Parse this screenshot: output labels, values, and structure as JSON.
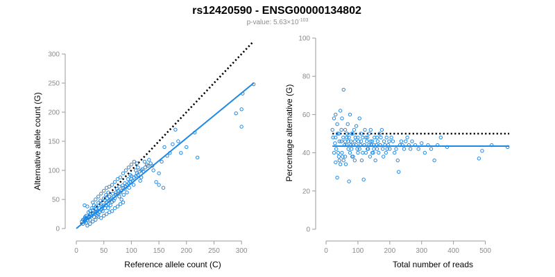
{
  "title": "rs12420590 - ENSG00000134802",
  "subtitle": {
    "prefix": "p-value: 5.63",
    "times": "×",
    "base": "10",
    "exponent": "-103"
  },
  "colors": {
    "points": "#1e88e5",
    "fit": "#1e88e5",
    "reference": "#000000",
    "axis": "#9a9a9a"
  },
  "chart_data": [
    {
      "type": "scatter",
      "xlabel": "Reference allele count (C)",
      "ylabel": "Alternative allele count (G)",
      "xlim": [
        0,
        325
      ],
      "ylim": [
        0,
        300
      ],
      "xticks": [
        0,
        50,
        100,
        150,
        200,
        250,
        300
      ],
      "yticks": [
        0,
        50,
        100,
        150,
        200,
        250,
        300
      ],
      "grid": false,
      "reference_line": {
        "style": "dotted",
        "from": [
          8,
          8
        ],
        "to": [
          322,
          322
        ]
      },
      "fit_line": {
        "style": "solid",
        "from": [
          0,
          0
        ],
        "to": [
          322,
          250
        ]
      },
      "points": [
        [
          12,
          8
        ],
        [
          15,
          12
        ],
        [
          18,
          10
        ],
        [
          20,
          14
        ],
        [
          22,
          18
        ],
        [
          25,
          15
        ],
        [
          14,
          16
        ],
        [
          16,
          20
        ],
        [
          10,
          12
        ],
        [
          28,
          22
        ],
        [
          30,
          25
        ],
        [
          32,
          20
        ],
        [
          35,
          28
        ],
        [
          38,
          30
        ],
        [
          40,
          25
        ],
        [
          42,
          35
        ],
        [
          45,
          32
        ],
        [
          48,
          38
        ],
        [
          50,
          40
        ],
        [
          52,
          35
        ],
        [
          55,
          45
        ],
        [
          58,
          42
        ],
        [
          60,
          48
        ],
        [
          62,
          50
        ],
        [
          65,
          46
        ],
        [
          68,
          55
        ],
        [
          70,
          52
        ],
        [
          72,
          58
        ],
        [
          75,
          60
        ],
        [
          78,
          55
        ],
        [
          80,
          62
        ],
        [
          82,
          65
        ],
        [
          85,
          70
        ],
        [
          88,
          68
        ],
        [
          90,
          72
        ],
        [
          92,
          75
        ],
        [
          95,
          78
        ],
        [
          98,
          80
        ],
        [
          100,
          85
        ],
        [
          102,
          82
        ],
        [
          105,
          88
        ],
        [
          108,
          90
        ],
        [
          110,
          95
        ],
        [
          112,
          92
        ],
        [
          115,
          98
        ],
        [
          118,
          100
        ],
        [
          120,
          102
        ],
        [
          122,
          98
        ],
        [
          125,
          105
        ],
        [
          128,
          110
        ],
        [
          15,
          40
        ],
        [
          20,
          38
        ],
        [
          25,
          30
        ],
        [
          30,
          45
        ],
        [
          35,
          50
        ],
        [
          40,
          55
        ],
        [
          45,
          60
        ],
        [
          50,
          65
        ],
        [
          55,
          70
        ],
        [
          60,
          72
        ],
        [
          65,
          75
        ],
        [
          70,
          80
        ],
        [
          75,
          85
        ],
        [
          80,
          88
        ],
        [
          85,
          95
        ],
        [
          90,
          100
        ],
        [
          95,
          105
        ],
        [
          100,
          110
        ],
        [
          105,
          115
        ],
        [
          110,
          112
        ],
        [
          40,
          20
        ],
        [
          45,
          18
        ],
        [
          50,
          22
        ],
        [
          55,
          25
        ],
        [
          60,
          28
        ],
        [
          65,
          30
        ],
        [
          70,
          35
        ],
        [
          75,
          38
        ],
        [
          80,
          42
        ],
        [
          85,
          45
        ],
        [
          30,
          12
        ],
        [
          35,
          15
        ],
        [
          20,
          5
        ],
        [
          25,
          8
        ],
        [
          18,
          22
        ],
        [
          22,
          28
        ],
        [
          28,
          35
        ],
        [
          32,
          40
        ],
        [
          36,
          38
        ],
        [
          44,
          42
        ],
        [
          48,
          30
        ],
        [
          52,
          48
        ],
        [
          56,
          52
        ],
        [
          58,
          35
        ],
        [
          62,
          40
        ],
        [
          66,
          60
        ],
        [
          74,
          68
        ],
        [
          78,
          72
        ],
        [
          82,
          50
        ],
        [
          86,
          58
        ],
        [
          88,
          78
        ],
        [
          92,
          62
        ],
        [
          96,
          70
        ],
        [
          100,
          90
        ],
        [
          104,
          75
        ],
        [
          108,
          100
        ],
        [
          112,
          105
        ],
        [
          116,
          82
        ],
        [
          118,
          88
        ],
        [
          124,
          115
        ],
        [
          130,
          108
        ],
        [
          135,
          112
        ],
        [
          140,
          100
        ],
        [
          145,
          80
        ],
        [
          150,
          95
        ],
        [
          155,
          115
        ],
        [
          160,
          140
        ],
        [
          165,
          125
        ],
        [
          170,
          130
        ],
        [
          175,
          145
        ],
        [
          180,
          170
        ],
        [
          185,
          150
        ],
        [
          190,
          130
        ],
        [
          200,
          140
        ],
        [
          215,
          165
        ],
        [
          220,
          122
        ],
        [
          150,
          75
        ],
        [
          158,
          70
        ],
        [
          138,
          108
        ],
        [
          132,
          118
        ],
        [
          290,
          198
        ],
        [
          300,
          175
        ],
        [
          302,
          232
        ],
        [
          322,
          248
        ],
        [
          300,
          205
        ],
        [
          16,
          18
        ],
        [
          24,
          20
        ],
        [
          34,
          26
        ],
        [
          38,
          22
        ],
        [
          42,
          28
        ],
        [
          46,
          34
        ],
        [
          54,
          40
        ],
        [
          60,
          55
        ],
        [
          64,
          52
        ],
        [
          68,
          48
        ],
        [
          72,
          62
        ],
        [
          76,
          65
        ],
        [
          84,
          74
        ],
        [
          94,
          85
        ],
        [
          98,
          92
        ],
        [
          12,
          15
        ],
        [
          18,
          18
        ],
        [
          26,
          24
        ],
        [
          30,
          32
        ],
        [
          36,
          34
        ],
        [
          40,
          44
        ],
        [
          44,
          48
        ],
        [
          50,
          52
        ],
        [
          54,
          58
        ],
        [
          58,
          62
        ]
      ]
    },
    {
      "type": "scatter",
      "xlabel": "Total number of reads",
      "ylabel": "Percentage alternative (G)",
      "xlim": [
        0,
        575
      ],
      "ylim": [
        0,
        100
      ],
      "xticks": [
        0,
        100,
        200,
        300,
        400,
        500
      ],
      "yticks": [
        0,
        20,
        40,
        60,
        80,
        100
      ],
      "grid": false,
      "reference_line": {
        "style": "dotted",
        "from": [
          20,
          50
        ],
        "to": [
          575,
          50
        ]
      },
      "fit_line": {
        "style": "solid",
        "from": [
          20,
          43.5
        ],
        "to": [
          575,
          43.5
        ]
      },
      "points": [
        [
          20,
          52
        ],
        [
          22,
          48
        ],
        [
          25,
          58
        ],
        [
          28,
          45
        ],
        [
          30,
          60
        ],
        [
          32,
          42
        ],
        [
          35,
          55
        ],
        [
          38,
          40
        ],
        [
          40,
          50
        ],
        [
          42,
          36
        ],
        [
          45,
          62
        ],
        [
          48,
          46
        ],
        [
          50,
          58
        ],
        [
          52,
          38
        ],
        [
          55,
          73
        ],
        [
          58,
          44
        ],
        [
          60,
          52
        ],
        [
          62,
          34
        ],
        [
          65,
          48
        ],
        [
          68,
          55
        ],
        [
          70,
          42
        ],
        [
          72,
          25
        ],
        [
          75,
          60
        ],
        [
          78,
          46
        ],
        [
          80,
          50
        ],
        [
          82,
          38
        ],
        [
          85,
          44
        ],
        [
          88,
          52
        ],
        [
          90,
          36
        ],
        [
          92,
          48
        ],
        [
          95,
          54
        ],
        [
          98,
          42
        ],
        [
          100,
          40
        ],
        [
          102,
          46
        ],
        [
          105,
          58
        ],
        [
          108,
          44
        ],
        [
          110,
          50
        ],
        [
          112,
          36
        ],
        [
          115,
          48
        ],
        [
          118,
          26
        ],
        [
          120,
          44
        ],
        [
          122,
          52
        ],
        [
          125,
          40
        ],
        [
          128,
          46
        ],
        [
          130,
          48
        ],
        [
          132,
          42
        ],
        [
          135,
          50
        ],
        [
          138,
          38
        ],
        [
          140,
          52
        ],
        [
          142,
          44
        ],
        [
          145,
          46
        ],
        [
          148,
          40
        ],
        [
          150,
          42
        ],
        [
          152,
          48
        ],
        [
          155,
          36
        ],
        [
          158,
          44
        ],
        [
          160,
          42
        ],
        [
          162,
          46
        ],
        [
          165,
          40
        ],
        [
          168,
          50
        ],
        [
          170,
          44
        ],
        [
          172,
          48
        ],
        [
          175,
          52
        ],
        [
          178,
          42
        ],
        [
          180,
          38
        ],
        [
          182,
          46
        ],
        [
          185,
          44
        ],
        [
          188,
          40
        ],
        [
          190,
          48
        ],
        [
          192,
          42
        ],
        [
          195,
          44
        ],
        [
          198,
          46
        ],
        [
          200,
          42
        ],
        [
          205,
          48
        ],
        [
          210,
          46
        ],
        [
          215,
          40
        ],
        [
          220,
          42
        ],
        [
          225,
          36
        ],
        [
          228,
          30
        ],
        [
          232,
          44
        ],
        [
          236,
          46
        ],
        [
          240,
          44
        ],
        [
          245,
          42
        ],
        [
          250,
          46
        ],
        [
          255,
          48
        ],
        [
          260,
          44
        ],
        [
          265,
          42
        ],
        [
          270,
          46
        ],
        [
          280,
          44
        ],
        [
          290,
          42
        ],
        [
          300,
          45
        ],
        [
          310,
          40
        ],
        [
          320,
          44
        ],
        [
          330,
          42
        ],
        [
          340,
          36
        ],
        [
          350,
          44
        ],
        [
          360,
          48
        ],
        [
          380,
          43
        ],
        [
          480,
          37
        ],
        [
          490,
          41
        ],
        [
          520,
          44
        ],
        [
          570,
          43
        ],
        [
          25,
          40
        ],
        [
          30,
          35
        ],
        [
          35,
          27
        ],
        [
          40,
          38
        ],
        [
          45,
          34
        ],
        [
          50,
          40
        ],
        [
          55,
          36
        ],
        [
          60,
          38
        ],
        [
          65,
          44
        ],
        [
          70,
          46
        ],
        [
          75,
          40
        ],
        [
          80,
          42
        ],
        [
          85,
          38
        ],
        [
          90,
          46
        ],
        [
          95,
          44
        ],
        [
          100,
          48
        ],
        [
          105,
          42
        ],
        [
          110,
          46
        ],
        [
          115,
          40
        ],
        [
          120,
          44
        ],
        [
          125,
          48
        ],
        [
          130,
          42
        ],
        [
          135,
          44
        ],
        [
          140,
          46
        ],
        [
          145,
          40
        ],
        [
          150,
          44
        ],
        [
          160,
          48
        ],
        [
          170,
          44
        ],
        [
          30,
          48
        ],
        [
          36,
          50
        ],
        [
          42,
          46
        ],
        [
          48,
          52
        ],
        [
          54,
          48
        ],
        [
          60,
          46
        ],
        [
          66,
          50
        ],
        [
          72,
          48
        ],
        [
          78,
          44
        ],
        [
          84,
          50
        ]
      ]
    }
  ]
}
